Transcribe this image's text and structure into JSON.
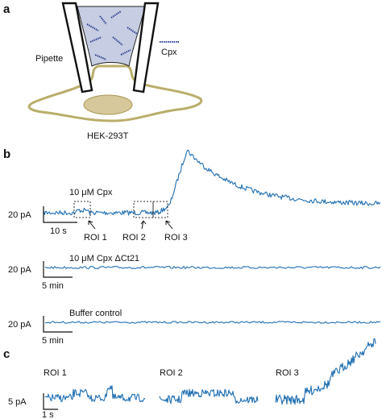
{
  "panels": {
    "a": "a",
    "b": "b",
    "c": "c"
  },
  "panel_a": {
    "pipette_label": "Pipette",
    "molecule_label": "Cpx",
    "cell_label": "HEK-293T",
    "colors": {
      "pipette_fill": "#c7cde2",
      "molecule": "#2b3f8f",
      "cell_outline": "#b9ae6a",
      "nucleus": "#d6c89a"
    }
  },
  "panel_b": {
    "trace_color": "#1f6fb2",
    "trace1": {
      "annotation": "10 μM Cpx",
      "y_scale": "20 pA",
      "x_scale": "10 s",
      "rois": [
        "ROI 1",
        "ROI 2",
        "ROI 3"
      ]
    },
    "trace2": {
      "annotation": "10 μM Cpx ΔCt21",
      "y_scale": "20 pA",
      "x_scale": "5 min"
    },
    "trace3": {
      "annotation": "Buffer control",
      "y_scale": "20 pA",
      "x_scale": "5 min"
    }
  },
  "panel_c": {
    "rois": [
      "ROI 1",
      "ROI 2",
      "ROI 3"
    ],
    "y_scale": "5 pA",
    "x_scale": "1 s"
  }
}
